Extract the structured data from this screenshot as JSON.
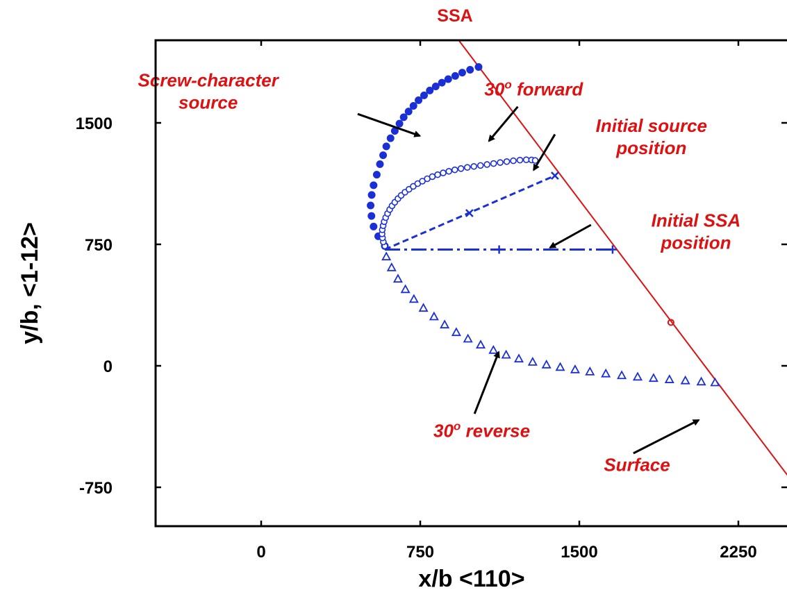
{
  "chart_data": {
    "type": "scatter",
    "title": "SSA",
    "xlabel": "x/b <110>",
    "ylabel": "y/b, <1-12>",
    "xlim": [
      -650,
      3300
    ],
    "ylim": [
      -1000,
      2000
    ],
    "x_ticks": [
      0,
      750,
      1500,
      2250
    ],
    "x_tick_labels": [
      "0",
      "750",
      "1500",
      "2250"
    ],
    "y_ticks": [
      -750,
      0,
      750,
      1500
    ],
    "y_tick_labels": [
      "-750",
      "0",
      "750",
      "1500"
    ],
    "grid": false,
    "colors": {
      "series": "#1a2fd6",
      "annotation": "#dd1111",
      "axis": "#000000"
    },
    "series": [
      {
        "marker": "filled-circle",
        "points": [
          [
            583,
            740
          ],
          [
            552,
            800
          ],
          [
            530,
            860
          ],
          [
            520,
            925
          ],
          [
            516,
            990
          ],
          [
            521,
            1055
          ],
          [
            530,
            1115
          ],
          [
            545,
            1180
          ],
          [
            560,
            1245
          ],
          [
            575,
            1300
          ],
          [
            590,
            1355
          ],
          [
            610,
            1405
          ],
          [
            630,
            1450
          ],
          [
            652,
            1495
          ],
          [
            672,
            1535
          ],
          [
            695,
            1570
          ],
          [
            718,
            1605
          ],
          [
            742,
            1640
          ],
          [
            768,
            1670
          ],
          [
            795,
            1700
          ],
          [
            823,
            1725
          ],
          [
            852,
            1748
          ],
          [
            882,
            1770
          ],
          [
            915,
            1790
          ],
          [
            948,
            1810
          ],
          [
            985,
            1828
          ],
          [
            1025,
            1845
          ]
        ]
      },
      {
        "marker": "open-circle",
        "points": [
          [
            583,
            740
          ],
          [
            576,
            765
          ],
          [
            572,
            790
          ],
          [
            570,
            815
          ],
          [
            571,
            840
          ],
          [
            575,
            865
          ],
          [
            580,
            890
          ],
          [
            587,
            915
          ],
          [
            596,
            940
          ],
          [
            606,
            965
          ],
          [
            617,
            988
          ],
          [
            630,
            1010
          ],
          [
            645,
            1032
          ],
          [
            660,
            1052
          ],
          [
            678,
            1072
          ],
          [
            697,
            1090
          ],
          [
            717,
            1108
          ],
          [
            738,
            1125
          ],
          [
            760,
            1140
          ],
          [
            783,
            1155
          ],
          [
            807,
            1168
          ],
          [
            832,
            1180
          ],
          [
            858,
            1191
          ],
          [
            885,
            1201
          ],
          [
            913,
            1210
          ],
          [
            942,
            1218
          ],
          [
            972,
            1225
          ],
          [
            1003,
            1231
          ],
          [
            1034,
            1237
          ],
          [
            1065,
            1243
          ],
          [
            1096,
            1249
          ],
          [
            1127,
            1255
          ],
          [
            1158,
            1261
          ],
          [
            1189,
            1266
          ],
          [
            1220,
            1270
          ],
          [
            1250,
            1272
          ],
          [
            1275,
            1271
          ],
          [
            1292,
            1268
          ]
        ]
      },
      {
        "marker": "triangle",
        "points": [
          [
            590,
            672
          ],
          [
            615,
            605
          ],
          [
            645,
            535
          ],
          [
            680,
            470
          ],
          [
            720,
            410
          ],
          [
            765,
            355
          ],
          [
            815,
            302
          ],
          [
            865,
            252
          ],
          [
            920,
            205
          ],
          [
            975,
            165
          ],
          [
            1035,
            128
          ],
          [
            1095,
            95
          ],
          [
            1155,
            66
          ],
          [
            1215,
            42
          ],
          [
            1280,
            22
          ],
          [
            1345,
            5
          ],
          [
            1410,
            -10
          ],
          [
            1480,
            -25
          ],
          [
            1550,
            -38
          ],
          [
            1625,
            -50
          ],
          [
            1700,
            -61
          ],
          [
            1775,
            -70
          ],
          [
            1850,
            -78
          ],
          [
            1925,
            -86
          ],
          [
            2000,
            -93
          ],
          [
            2075,
            -100
          ],
          [
            2140,
            -105
          ]
        ]
      }
    ],
    "dashed_lines": [
      {
        "style": "dash",
        "from": [
          583,
          718
        ],
        "to": [
          1385,
          1174
        ],
        "marks": [
          [
            982,
            943
          ],
          [
            1385,
            1174
          ]
        ],
        "mark_shape": "x"
      },
      {
        "style": "dash-dot",
        "from": [
          583,
          718
        ],
        "to": [
          1657,
          718
        ],
        "marks": [
          [
            1122,
            718
          ],
          [
            1657,
            718
          ]
        ],
        "mark_shape": "plus"
      }
    ],
    "surface_line": {
      "from": [
        920,
        2030
      ],
      "to": [
        2690,
        -1037
      ],
      "mark": [
        1932,
        268
      ]
    },
    "annotations": [
      {
        "lines": [
          "Screw-character",
          "source"
        ],
        "text_pos": [
          -250,
          1725
        ],
        "arrow_from": [
          455,
          1555
        ],
        "arrow_to": [
          748,
          1420
        ]
      },
      {
        "lines": [
          "30o forward"
        ],
        "text_pos": [
          1285,
          1670
        ],
        "arrow_from": [
          1210,
          1600
        ],
        "arrow_to": [
          1074,
          1388
        ]
      },
      {
        "lines": [
          "Initial source",
          "position"
        ],
        "text_pos": [
          1840,
          1445
        ],
        "arrow_from": [
          1385,
          1429
        ],
        "arrow_to": [
          1285,
          1209
        ]
      },
      {
        "lines": [
          "Initial SSA",
          "position"
        ],
        "text_pos": [
          2050,
          860
        ],
        "arrow_from": [
          1555,
          870
        ],
        "arrow_to": [
          1362,
          730
        ]
      },
      {
        "lines": [
          "30o reverse"
        ],
        "text_pos": [
          1040,
          -440
        ],
        "arrow_from": [
          1006,
          -296
        ],
        "arrow_to": [
          1120,
          85
        ]
      },
      {
        "lines": [
          "Surface"
        ],
        "text_pos": [
          1772,
          -650
        ],
        "arrow_from": [
          1755,
          -540
        ],
        "arrow_to": [
          2063,
          -335
        ]
      }
    ]
  }
}
